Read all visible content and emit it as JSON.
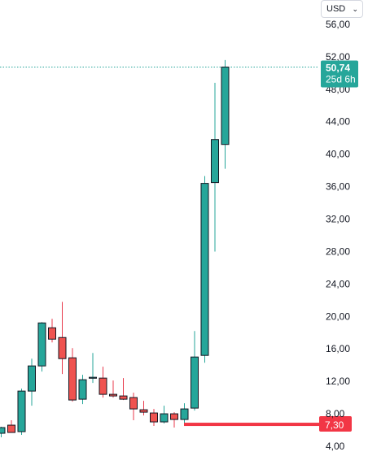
{
  "currency": {
    "label": "USD",
    "icon": "chevron-down-icon"
  },
  "colors": {
    "up": "#26a69a",
    "down": "#ef5350",
    "wick_down": "#e8394b",
    "outline": "#131722",
    "last_price_bg": "#26a69a",
    "level_line": "#f23645"
  },
  "chart_data": {
    "type": "candlestick",
    "y_ticks": [
      "4,00",
      "8,00",
      "12,00",
      "16,00",
      "20,00",
      "24,00",
      "28,00",
      "32,00",
      "36,00",
      "40,00",
      "44,00",
      "48,00",
      "52,00",
      "56,00"
    ],
    "y_tick_values": [
      4,
      8,
      12,
      16,
      20,
      24,
      28,
      32,
      36,
      40,
      44,
      48,
      52,
      56
    ],
    "ylim": [
      4.0,
      57.6
    ],
    "last_price": {
      "value": 50.74,
      "label": "50,74",
      "countdown": "25d 6h"
    },
    "level_line": {
      "value": 7.3,
      "label": "7,30"
    },
    "candles": [
      {
        "o": 5.6,
        "h": 6.4,
        "l": 5.1,
        "c": 6.3
      },
      {
        "o": 6.6,
        "h": 7.2,
        "l": 5.8,
        "c": 5.7
      },
      {
        "o": 5.8,
        "h": 11.1,
        "l": 5.4,
        "c": 10.8
      },
      {
        "o": 10.8,
        "h": 14.8,
        "l": 9.0,
        "c": 13.9
      },
      {
        "o": 13.9,
        "h": 19.3,
        "l": 13.2,
        "c": 19.2
      },
      {
        "o": 18.6,
        "h": 19.7,
        "l": 16.8,
        "c": 17.2
      },
      {
        "o": 17.4,
        "h": 21.8,
        "l": 12.9,
        "c": 14.8
      },
      {
        "o": 14.9,
        "h": 16.1,
        "l": 9.5,
        "c": 9.7
      },
      {
        "o": 9.8,
        "h": 12.8,
        "l": 9.2,
        "c": 12.2
      },
      {
        "o": 12.4,
        "h": 15.5,
        "l": 11.8,
        "c": 12.5
      },
      {
        "o": 12.4,
        "h": 13.8,
        "l": 10.0,
        "c": 10.4
      },
      {
        "o": 10.4,
        "h": 12.1,
        "l": 10.0,
        "c": 10.2
      },
      {
        "o": 10.2,
        "h": 12.4,
        "l": 9.7,
        "c": 9.8
      },
      {
        "o": 10.0,
        "h": 10.6,
        "l": 7.2,
        "c": 8.6
      },
      {
        "o": 8.5,
        "h": 9.6,
        "l": 7.8,
        "c": 8.2
      },
      {
        "o": 8.1,
        "h": 8.6,
        "l": 6.5,
        "c": 7.0
      },
      {
        "o": 7.0,
        "h": 9.0,
        "l": 6.8,
        "c": 8.0
      },
      {
        "o": 8.0,
        "h": 8.2,
        "l": 6.3,
        "c": 7.3
      },
      {
        "o": 7.3,
        "h": 9.3,
        "l": 6.8,
        "c": 8.6
      },
      {
        "o": 8.7,
        "h": 18.2,
        "l": 8.4,
        "c": 15.0
      },
      {
        "o": 15.2,
        "h": 37.3,
        "l": 14.3,
        "c": 36.4
      },
      {
        "o": 36.5,
        "h": 48.8,
        "l": 28.0,
        "c": 41.8
      },
      {
        "o": 41.2,
        "h": 51.6,
        "l": 38.2,
        "c": 50.74
      }
    ]
  }
}
